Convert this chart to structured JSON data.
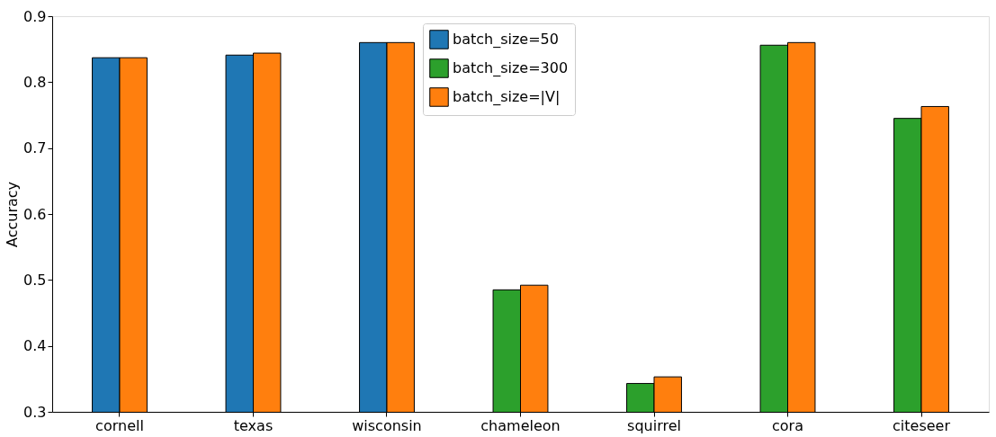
{
  "chart_data": {
    "type": "bar",
    "ylabel": "Accuracy",
    "categories": [
      "cornell",
      "texas",
      "wisconsin",
      "chameleon",
      "squirrel",
      "cora",
      "citeseer"
    ],
    "series": [
      {
        "name": "batch_size=50",
        "color": "#1f77b4",
        "values": [
          0.837,
          0.841,
          0.86,
          null,
          null,
          null,
          null
        ]
      },
      {
        "name": "batch_size=300",
        "color": "#2ca02c",
        "values": [
          null,
          null,
          null,
          0.485,
          0.343,
          0.856,
          0.745
        ]
      },
      {
        "name": "batch_size=|V|",
        "color": "#ff7f0e",
        "values": [
          0.837,
          0.844,
          0.86,
          0.492,
          0.353,
          0.86,
          0.763
        ]
      }
    ],
    "ylim": [
      0.3,
      0.9
    ],
    "yticks": [
      0.3,
      0.4,
      0.5,
      0.6,
      0.7,
      0.8,
      0.9
    ],
    "grid": false,
    "legend": "top"
  }
}
